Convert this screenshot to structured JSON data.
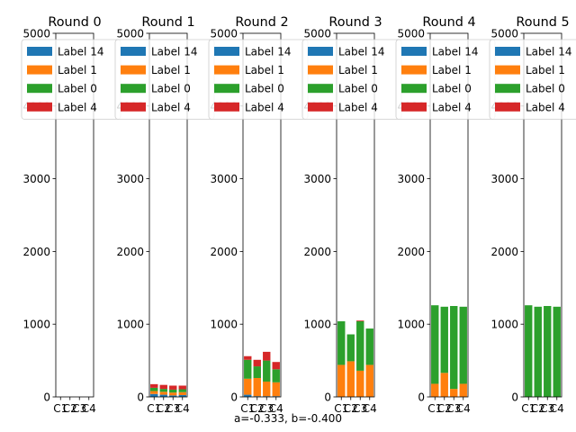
{
  "figure": {
    "caption": "a=-0.333, b=-0.400"
  },
  "colors": {
    "Label 14": "#1f77b4",
    "Label 1": "#ff7f0e",
    "Label 0": "#2ca02c",
    "Label 4": "#d62728"
  },
  "chart_data": [
    {
      "type": "bar",
      "stacked": true,
      "title": "Round 0",
      "categories": [
        "C1",
        "C2",
        "C3",
        "C4"
      ],
      "ylim": [
        0,
        5000
      ],
      "yticks": [
        0,
        1000,
        2000,
        3000,
        4000,
        5000
      ],
      "legend_position": "upper-right",
      "series": [
        {
          "name": "Label 14",
          "values": [
            0,
            0,
            0,
            0
          ]
        },
        {
          "name": "Label 1",
          "values": [
            0,
            0,
            0,
            0
          ]
        },
        {
          "name": "Label 0",
          "values": [
            0,
            0,
            0,
            0
          ]
        },
        {
          "name": "Label 4",
          "values": [
            0,
            0,
            0,
            0
          ]
        }
      ]
    },
    {
      "type": "bar",
      "stacked": true,
      "title": "Round 1",
      "categories": [
        "C1",
        "C2",
        "C3",
        "C4"
      ],
      "ylim": [
        0,
        5000
      ],
      "yticks": [
        0,
        1000,
        2000,
        3000,
        4000,
        5000
      ],
      "legend_position": "upper-right",
      "series": [
        {
          "name": "Label 14",
          "values": [
            40,
            30,
            20,
            25
          ]
        },
        {
          "name": "Label 1",
          "values": [
            40,
            40,
            40,
            40
          ]
        },
        {
          "name": "Label 0",
          "values": [
            45,
            40,
            40,
            40
          ]
        },
        {
          "name": "Label 4",
          "values": [
            50,
            55,
            55,
            50
          ]
        }
      ]
    },
    {
      "type": "bar",
      "stacked": true,
      "title": "Round 2",
      "categories": [
        "C1",
        "C2",
        "C3",
        "C4"
      ],
      "ylim": [
        0,
        5000
      ],
      "yticks": [
        0,
        1000,
        2000,
        3000,
        4000,
        5000
      ],
      "legend_position": "upper-right",
      "series": [
        {
          "name": "Label 14",
          "values": [
            30,
            10,
            10,
            10
          ]
        },
        {
          "name": "Label 1",
          "values": [
            220,
            250,
            200,
            190
          ]
        },
        {
          "name": "Label 0",
          "values": [
            260,
            160,
            290,
            180
          ]
        },
        {
          "name": "Label 4",
          "values": [
            50,
            90,
            120,
            100
          ]
        }
      ]
    },
    {
      "type": "bar",
      "stacked": true,
      "title": "Round 3",
      "categories": [
        "C1",
        "C2",
        "C3",
        "C4"
      ],
      "ylim": [
        0,
        5000
      ],
      "yticks": [
        0,
        1000,
        2000,
        3000,
        4000,
        5000
      ],
      "legend_position": "upper-right",
      "series": [
        {
          "name": "Label 14",
          "values": [
            0,
            0,
            0,
            0
          ]
        },
        {
          "name": "Label 1",
          "values": [
            440,
            490,
            360,
            440
          ]
        },
        {
          "name": "Label 0",
          "values": [
            600,
            370,
            680,
            500
          ]
        },
        {
          "name": "Label 4",
          "values": [
            0,
            0,
            10,
            0
          ]
        }
      ]
    },
    {
      "type": "bar",
      "stacked": true,
      "title": "Round 4",
      "categories": [
        "C1",
        "C2",
        "C3",
        "C4"
      ],
      "ylim": [
        0,
        5000
      ],
      "yticks": [
        0,
        1000,
        2000,
        3000,
        4000,
        5000
      ],
      "legend_position": "upper-right",
      "series": [
        {
          "name": "Label 14",
          "values": [
            0,
            0,
            0,
            0
          ]
        },
        {
          "name": "Label 1",
          "values": [
            180,
            330,
            110,
            180
          ]
        },
        {
          "name": "Label 0",
          "values": [
            1080,
            910,
            1140,
            1060
          ]
        },
        {
          "name": "Label 4",
          "values": [
            0,
            0,
            0,
            0
          ]
        }
      ]
    },
    {
      "type": "bar",
      "stacked": true,
      "title": "Round 5",
      "categories": [
        "C1",
        "C2",
        "C3",
        "C4"
      ],
      "ylim": [
        0,
        5000
      ],
      "yticks": [
        0,
        1000,
        2000,
        3000,
        4000,
        5000
      ],
      "legend_position": "upper-right",
      "series": [
        {
          "name": "Label 14",
          "values": [
            0,
            0,
            0,
            0
          ]
        },
        {
          "name": "Label 1",
          "values": [
            0,
            0,
            0,
            0
          ]
        },
        {
          "name": "Label 0",
          "values": [
            1260,
            1240,
            1250,
            1240
          ]
        },
        {
          "name": "Label 4",
          "values": [
            0,
            0,
            0,
            0
          ]
        }
      ]
    }
  ]
}
